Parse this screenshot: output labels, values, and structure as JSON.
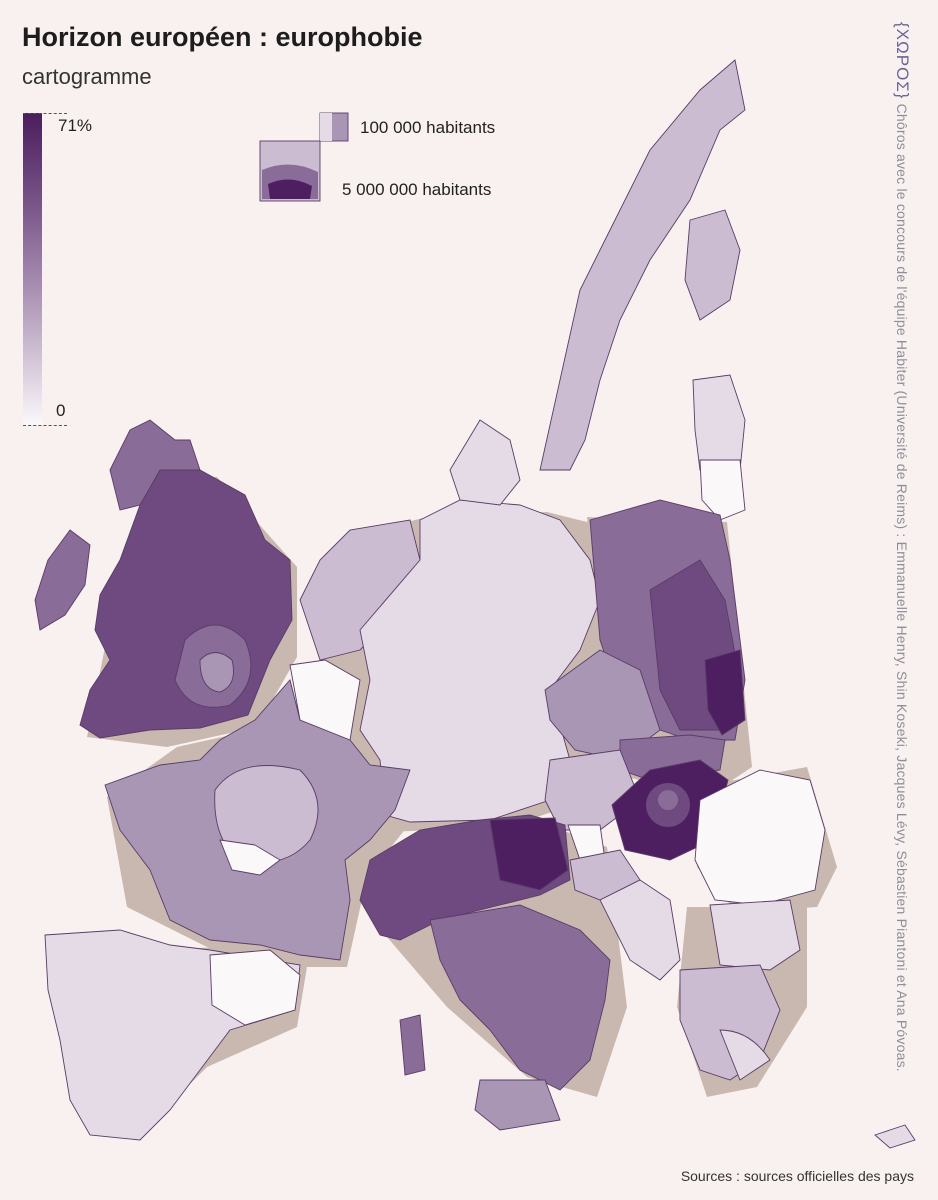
{
  "title": "Horizon européen : europhobie",
  "subtitle": "cartogramme",
  "legend": {
    "max_label": "71%",
    "min_label": "0",
    "max_value": 71,
    "min_value": 0,
    "color_max": "#4b1d5c",
    "color_min": "#fbf8fa"
  },
  "size_legend": {
    "small_label": "100 000 habitants",
    "large_label": "5 000 000 habitants"
  },
  "credit": {
    "logo": "{ΧΩΡΟΣ}",
    "text": "Chôros avec le concours de l'équipe Habiter (Université de Reims) : Emmanuelle Henry, Shin Koseki, Jacques Lévy, Sébastien Piantoni et Ana Póvoas."
  },
  "sources": "Sources : sources officielles des pays",
  "colors": {
    "background": "#f9f1ef",
    "very_high": "#4d1f60",
    "high": "#6e4a80",
    "mid_high": "#8a6c99",
    "mid": "#a995b4",
    "low": "#cbbcd1",
    "very_low": "#e4dbe6",
    "none": "#fbf8fa"
  }
}
